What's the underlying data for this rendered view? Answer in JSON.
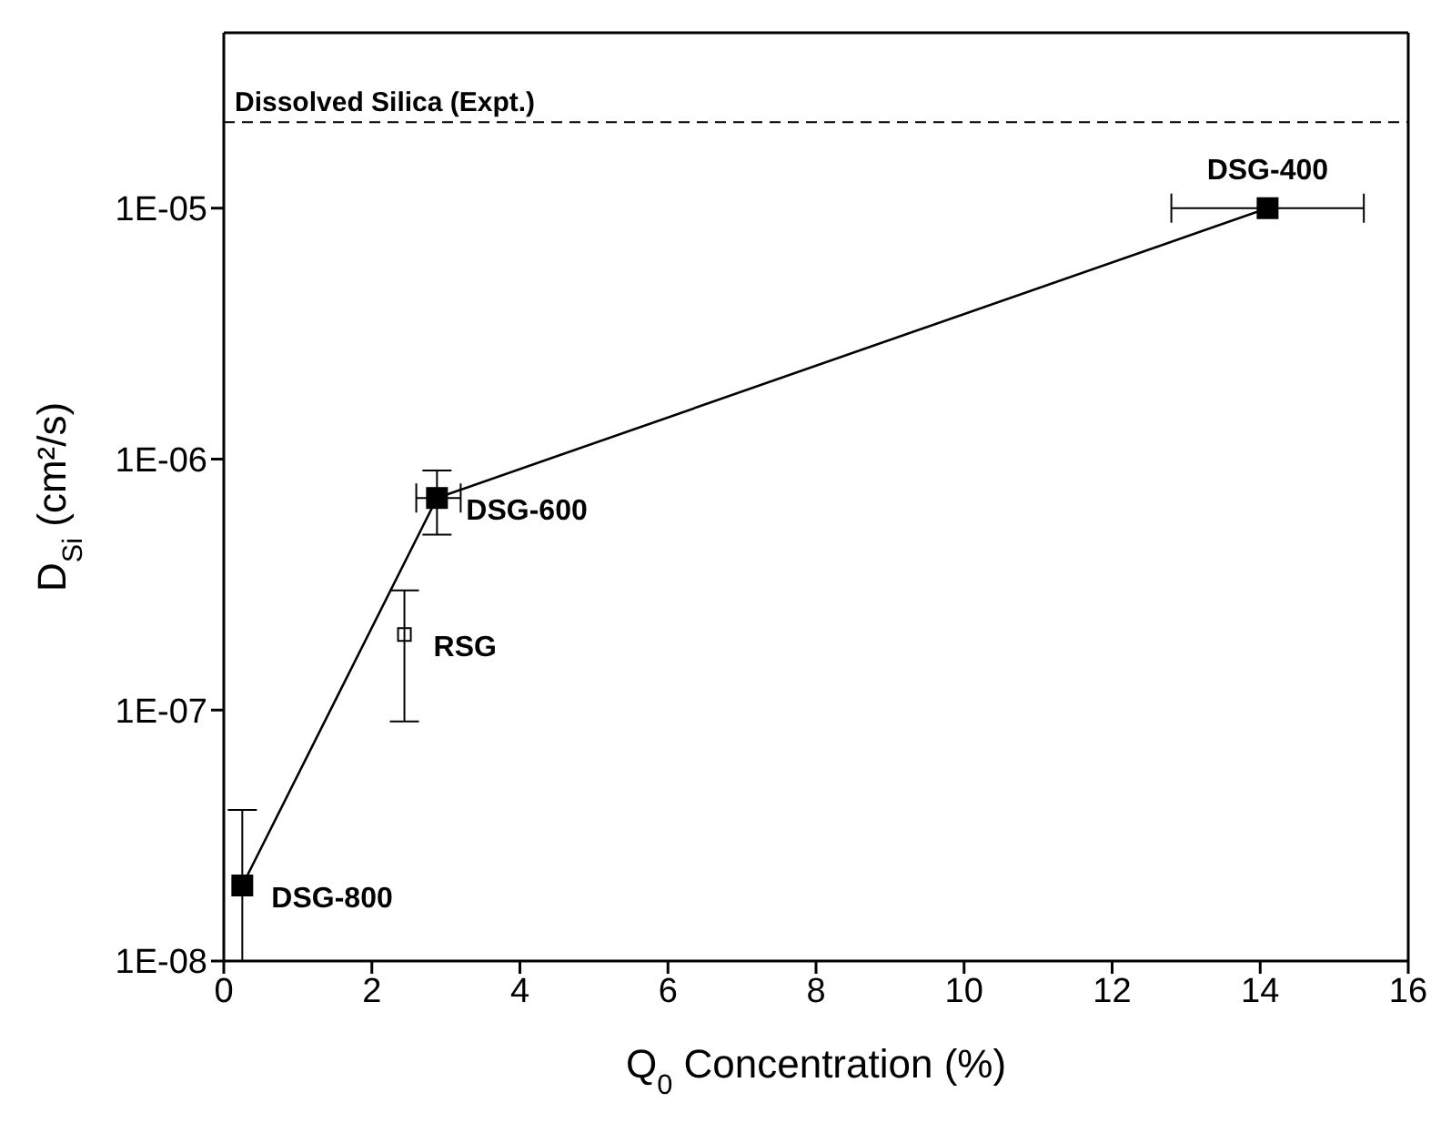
{
  "chart_data": {
    "type": "scatter",
    "xlabel": "Q$_{0}$ Concentration (%)",
    "ylabel": "D$_{Si}$ (cm²/s)",
    "xlim": [
      0,
      16
    ],
    "xticks": [
      0,
      2,
      4,
      6,
      8,
      10,
      12,
      14,
      16
    ],
    "ylim": [
      1e-08,
      5e-05
    ],
    "yticks": [
      {
        "value": 1e-08,
        "label": "1E-08"
      },
      {
        "value": 1e-07,
        "label": "1E-07"
      },
      {
        "value": 1e-06,
        "label": "1E-06"
      },
      {
        "value": 1e-05,
        "label": "1E-05"
      }
    ],
    "log": "y",
    "marker": "square",
    "line_style": "solid",
    "series": [
      {
        "type": "line",
        "color": "#000000",
        "x": [
          0.25,
          2.88,
          14.1
        ],
        "values": [
          2e-08,
          7e-07,
          1e-05
        ],
        "errors": [
          [
            1e-08,
            4e-08
          ],
          [
            5e-07,
            9e-07
          ],
          null
        ],
        "xerrors": [
          null,
          [
            2.6,
            3.2
          ],
          [
            12.8,
            15.4
          ]
        ]
      },
      {
        "color": "#000000",
        "x": [
          2.44
        ],
        "values": [
          2e-07
        ],
        "errors": [
          [
            9e-08,
            3e-07
          ]
        ]
      }
    ],
    "ref_lines": [
      {
        "axis": "y",
        "value": 2.2e-05,
        "label": "Dissolved Silica (Expt.)",
        "line_style": "dashed",
        "color": "#000000"
      }
    ],
    "annotations": [
      {
        "text": "DSG-800",
        "x": 0.25,
        "y": 2e-08
      },
      {
        "text": "DSG-600",
        "x": 2.88,
        "y": 7e-07
      },
      {
        "text": "RSG",
        "x": 2.44,
        "y": 2e-07
      },
      {
        "text": "DSG-400",
        "x": 14.1,
        "y": 1e-05
      }
    ]
  }
}
